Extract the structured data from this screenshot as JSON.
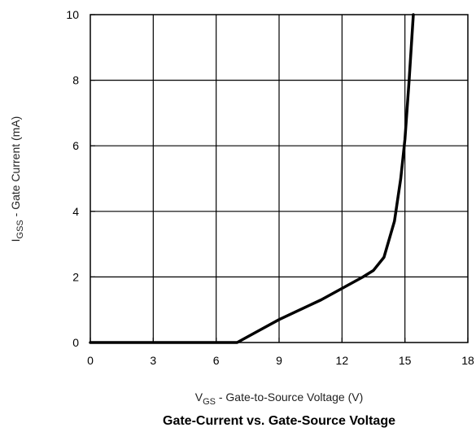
{
  "chart_data": {
    "type": "line",
    "title": "Gate-Current vs. Gate-Source Voltage",
    "xlabel": {
      "main": "V",
      "sub": "GS",
      "rest": " - Gate-to-Source Voltage (V)"
    },
    "ylabel": {
      "main": "I",
      "sub": "GSS",
      "rest": " - Gate Current (mA)"
    },
    "xlim": [
      0,
      18
    ],
    "ylim": [
      0,
      10
    ],
    "xticks": [
      "0",
      "3",
      "6",
      "9",
      "12",
      "15",
      "18"
    ],
    "yticks": [
      "0",
      "2",
      "4",
      "6",
      "8",
      "10"
    ],
    "grid": true,
    "series": [
      {
        "x": [
          0,
          7.0,
          8.0,
          9.0,
          10.0,
          11.0,
          12.0,
          13.0,
          13.5,
          14.0,
          14.5,
          14.8,
          15.0,
          15.2,
          15.4
        ],
        "y": [
          0,
          0,
          0.35,
          0.7,
          1.0,
          1.3,
          1.65,
          2.0,
          2.2,
          2.6,
          3.7,
          5.0,
          6.2,
          8.0,
          10.0
        ]
      }
    ]
  },
  "colors": {
    "line": "#000000",
    "grid": "#000000",
    "background": "#ffffff"
  }
}
